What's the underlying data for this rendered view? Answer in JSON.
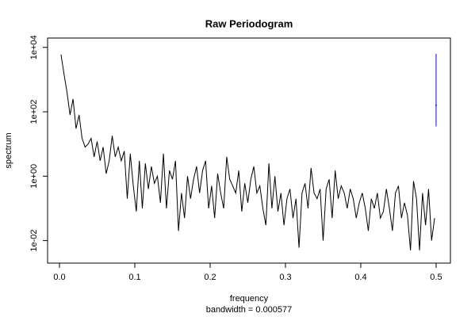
{
  "chart_data": {
    "type": "line",
    "title": "Raw Periodogram",
    "x_label": "frequency",
    "subtitle": "bandwidth = 0.000577",
    "y_label": "spectrum",
    "log_y": true,
    "x": [
      0.002,
      0.006,
      0.01,
      0.014,
      0.018,
      0.022,
      0.026,
      0.03,
      0.034,
      0.038,
      0.042,
      0.046,
      0.05,
      0.054,
      0.058,
      0.062,
      0.066,
      0.07,
      0.074,
      0.078,
      0.082,
      0.086,
      0.09,
      0.094,
      0.098,
      0.102,
      0.106,
      0.11,
      0.114,
      0.118,
      0.122,
      0.126,
      0.13,
      0.134,
      0.138,
      0.142,
      0.146,
      0.15,
      0.154,
      0.158,
      0.162,
      0.166,
      0.17,
      0.174,
      0.178,
      0.182,
      0.186,
      0.19,
      0.194,
      0.198,
      0.202,
      0.206,
      0.21,
      0.214,
      0.218,
      0.222,
      0.226,
      0.23,
      0.234,
      0.238,
      0.242,
      0.246,
      0.25,
      0.254,
      0.258,
      0.262,
      0.266,
      0.27,
      0.274,
      0.278,
      0.282,
      0.286,
      0.29,
      0.294,
      0.298,
      0.302,
      0.306,
      0.31,
      0.314,
      0.318,
      0.322,
      0.326,
      0.33,
      0.334,
      0.338,
      0.342,
      0.346,
      0.35,
      0.354,
      0.358,
      0.362,
      0.366,
      0.37,
      0.374,
      0.378,
      0.382,
      0.386,
      0.39,
      0.394,
      0.398,
      0.402,
      0.406,
      0.41,
      0.414,
      0.418,
      0.422,
      0.426,
      0.43,
      0.434,
      0.438,
      0.442,
      0.446,
      0.45,
      0.454,
      0.458,
      0.462,
      0.466,
      0.47,
      0.474,
      0.478,
      0.482,
      0.486,
      0.49,
      0.494,
      0.498
    ],
    "series": [
      {
        "name": "spectrum",
        "color": "#000000",
        "values": [
          6000,
          1500,
          400,
          80,
          250,
          30,
          80,
          15,
          8,
          10,
          15,
          4,
          12,
          3,
          8,
          1.2,
          3,
          18,
          4,
          8,
          3,
          6,
          0.2,
          5,
          0.5,
          0.08,
          3,
          0.1,
          2.5,
          0.4,
          2,
          0.6,
          1,
          0.15,
          5,
          0.1,
          1.5,
          0.8,
          3,
          0.02,
          0.3,
          0.05,
          1,
          0.2,
          0.8,
          2,
          0.3,
          1.5,
          3,
          0.1,
          0.5,
          0.05,
          1.2,
          0.3,
          0.1,
          4,
          0.8,
          0.5,
          0.3,
          1.5,
          0.08,
          0.6,
          0.15,
          0.8,
          2,
          0.3,
          0.5,
          0.1,
          0.03,
          2.5,
          0.1,
          1,
          0.08,
          0.3,
          0.03,
          0.2,
          0.4,
          0.05,
          0.2,
          0.006,
          0.3,
          0.6,
          0.1,
          1.8,
          0.3,
          0.2,
          0.4,
          0.01,
          0.4,
          0.8,
          0.05,
          1.5,
          0.2,
          0.5,
          0.3,
          0.1,
          0.4,
          0.2,
          0.05,
          0.15,
          0.3,
          0.1,
          0.02,
          0.2,
          0.1,
          0.3,
          0.05,
          0.08,
          0.4,
          0.1,
          0.02,
          0.3,
          0.5,
          0.05,
          0.15,
          0.06,
          0.005,
          0.7,
          0.2,
          0.005,
          0.3,
          0.03,
          0.4,
          0.01,
          0.05
        ]
      }
    ],
    "ci": {
      "x": 0.5,
      "lower": 35,
      "center": 160,
      "upper": 6300,
      "color": "#0000ff"
    },
    "xlim": [
      -0.0158,
      0.519
    ],
    "ylim": [
      0.002,
      19500
    ],
    "xticks": [
      {
        "value": 0,
        "label": "0.0"
      },
      0.1,
      0.2,
      0.3,
      0.4,
      0.5
    ],
    "yticks": [
      {
        "value": 0.01,
        "label": "1e-02"
      },
      {
        "value": 1,
        "label": "1e+00"
      },
      {
        "value": 100,
        "label": "1e+02"
      },
      {
        "value": 10000,
        "label": "1e+04"
      }
    ]
  }
}
